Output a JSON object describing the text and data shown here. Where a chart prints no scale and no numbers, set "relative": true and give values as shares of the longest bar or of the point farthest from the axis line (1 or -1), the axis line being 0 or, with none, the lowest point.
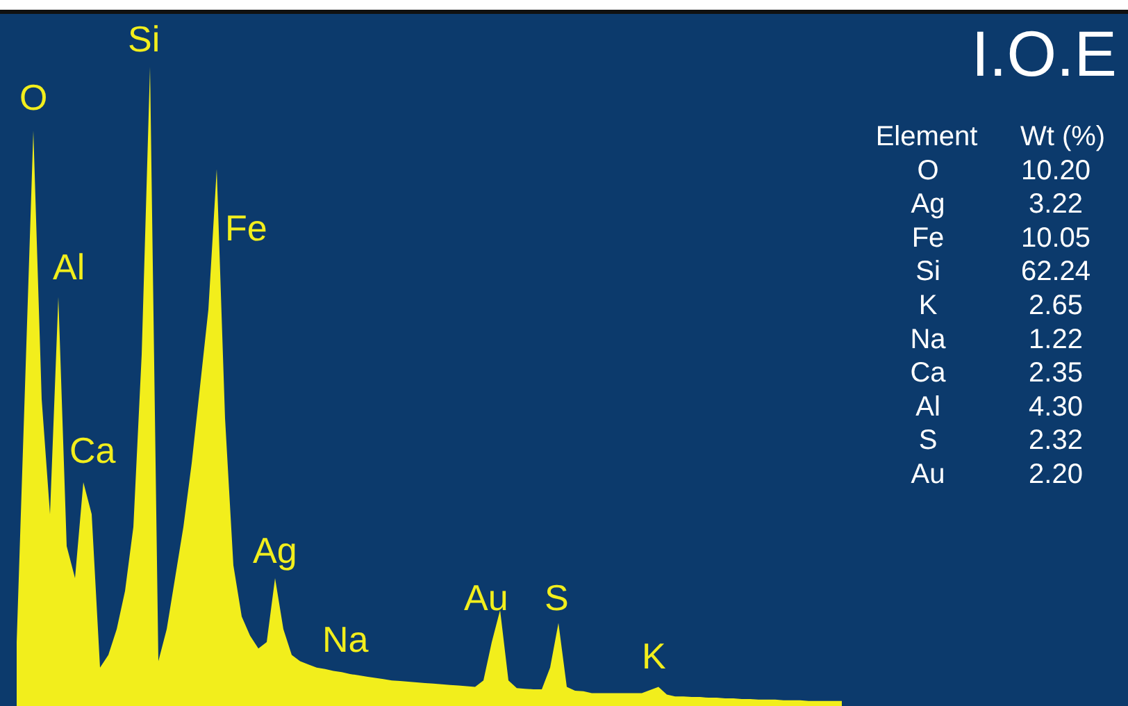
{
  "chart_data": {
    "type": "area",
    "title": "I.O.E",
    "relative": true,
    "legend": false,
    "categories": [
      null,
      null,
      null,
      null,
      null,
      null,
      null,
      null,
      null,
      null,
      null,
      null,
      null,
      null,
      null,
      null,
      null,
      null,
      null,
      null,
      null,
      null,
      null,
      null,
      null,
      null,
      null,
      null,
      null,
      null,
      null,
      null,
      null,
      null,
      null,
      null,
      null,
      null,
      null,
      null,
      null,
      null,
      null,
      null,
      null,
      null,
      null,
      null,
      null,
      null,
      null,
      null,
      null,
      null,
      null,
      null,
      null,
      null,
      null,
      null,
      null,
      null,
      null,
      null,
      null,
      null,
      null,
      null,
      null,
      null,
      null,
      null,
      null,
      null,
      null,
      null,
      null,
      null,
      null,
      null,
      null,
      null,
      null,
      null,
      null,
      null,
      null,
      null,
      null,
      null,
      null,
      null,
      null,
      null,
      null,
      null,
      null,
      null,
      null,
      null
    ],
    "series": [
      {
        "color": "#f2ee1c",
        "values": [
          0.1,
          0.5,
          0.9,
          0.48,
          0.3,
          0.64,
          0.25,
          0.2,
          0.35,
          0.3,
          0.06,
          0.08,
          0.12,
          0.18,
          0.28,
          0.55,
          1,
          0.07,
          0.12,
          0.2,
          0.28,
          0.38,
          0.5,
          0.62,
          0.84,
          0.45,
          0.22,
          0.14,
          0.11,
          0.09,
          0.1,
          0.2,
          0.12,
          0.08,
          0.07,
          0.065,
          0.06,
          0.058,
          0.055,
          0.053,
          0.05,
          0.048,
          0.046,
          0.044,
          0.042,
          0.04,
          0.039,
          0.038,
          0.037,
          0.036,
          0.035,
          0.034,
          0.033,
          0.032,
          0.031,
          0.03,
          0.04,
          0.1,
          0.15,
          0.04,
          0.028,
          0.027,
          0.026,
          0.026,
          0.06,
          0.13,
          0.03,
          0.024,
          0.023,
          0.02,
          0.02,
          0.02,
          0.02,
          0.02,
          0.02,
          0.02,
          0.025,
          0.03,
          0.018,
          0.015,
          0.015,
          0.014,
          0.014,
          0.013,
          0.013,
          0.012,
          0.012,
          0.011,
          0.011,
          0.01,
          0.01,
          0.01,
          0.009,
          0.009,
          0.009,
          0.008,
          0.008,
          0.008,
          0.008,
          0.008
        ]
      }
    ],
    "annotations": [
      "O",
      "Si",
      "Al",
      "Fe",
      "Ca",
      "Ag",
      "Na",
      "Au",
      "S",
      "K",
      "Element",
      "Wt (%)",
      "O",
      "10.20",
      "Ag",
      "3.22",
      "Fe",
      "10.05",
      "Si",
      "62.24",
      "K",
      "2.65",
      "Na",
      "1.22",
      "Ca",
      "2.35",
      "Al",
      "4.30",
      "S",
      "2.32",
      "Au",
      "2.20"
    ]
  }
}
